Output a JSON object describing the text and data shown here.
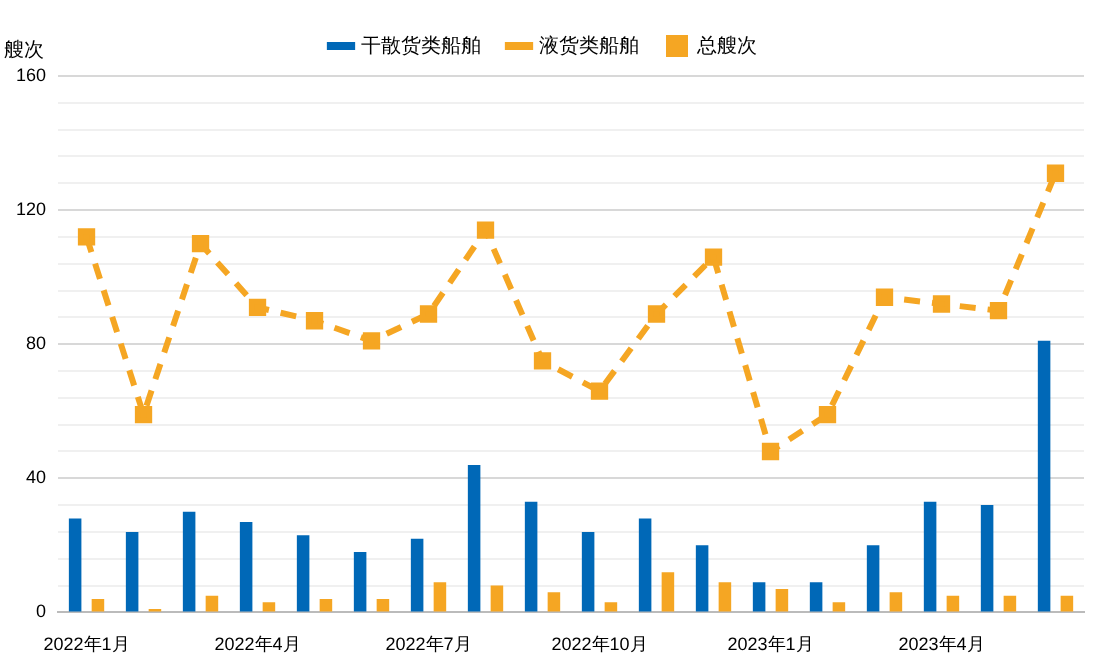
{
  "chart_data": {
    "type": "bar",
    "ylabel": "艘次",
    "categories": [
      "2022年1月",
      null,
      null,
      "2022年4月",
      null,
      null,
      "2022年7月",
      null,
      null,
      "2022年10月",
      null,
      null,
      "2023年1月",
      null,
      null,
      "2023年4月",
      null,
      null
    ],
    "series": [
      {
        "name": "干散货类船舶",
        "color": "#0068b7",
        "values": [
          28,
          24,
          30,
          27,
          23,
          18,
          22,
          44,
          33,
          24,
          28,
          20,
          9,
          9,
          20,
          33,
          32,
          81
        ]
      },
      {
        "name": "液货类船舶",
        "color": "#f5a623",
        "values": [
          4,
          1,
          5,
          3,
          4,
          4,
          9,
          8,
          6,
          3,
          12,
          9,
          7,
          3,
          6,
          5,
          5,
          5
        ]
      },
      {
        "name": "总艘次",
        "type": "line",
        "color": "#f5a623",
        "line_style": "dashed",
        "marker": "square",
        "values": [
          112,
          59,
          110,
          91,
          87,
          81,
          89,
          114,
          75,
          66,
          89,
          106,
          48,
          59,
          94,
          92,
          90,
          131
        ]
      }
    ],
    "ylim": [
      0,
      160
    ],
    "yticks": [
      0,
      {
        "value": 8,
        "label": null
      },
      {
        "value": 16,
        "label": null
      },
      {
        "value": 24,
        "label": null
      },
      {
        "value": 32,
        "label": null
      },
      40,
      {
        "value": 48,
        "label": null
      },
      {
        "value": 56,
        "label": null
      },
      {
        "value": 64,
        "label": null
      },
      {
        "value": 72,
        "label": null
      },
      80,
      {
        "value": 88,
        "label": null
      },
      {
        "value": 96,
        "label": null
      },
      {
        "value": 104,
        "label": null
      },
      {
        "value": 112,
        "label": null
      },
      120,
      {
        "value": 128,
        "label": null
      },
      {
        "value": 136,
        "label": null
      },
      {
        "value": 144,
        "label": null
      },
      {
        "value": 152,
        "label": null
      },
      160
    ],
    "grid": "y",
    "legend": "top"
  }
}
